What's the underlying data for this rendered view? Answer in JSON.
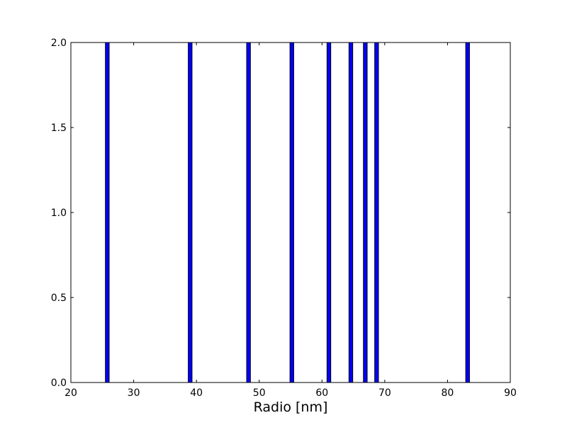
{
  "chart_data": {
    "type": "bar",
    "title": "",
    "xlabel": "Radio [nm]",
    "ylabel": "",
    "xlim": [
      20,
      90
    ],
    "ylim": [
      0,
      2.0
    ],
    "xticks": [
      20,
      30,
      40,
      50,
      60,
      70,
      80,
      90
    ],
    "xtick_labels": [
      "20",
      "30",
      "40",
      "50",
      "60",
      "70",
      "80",
      "90"
    ],
    "yticks": [
      0,
      0.5,
      1.0,
      1.5,
      2.0
    ],
    "ytick_labels": [
      "0.0",
      "0.5",
      "1.0",
      "1.5",
      "2.0"
    ],
    "grid": false,
    "bar_width": 0.6,
    "bars": [
      {
        "x": 25.8,
        "value": 2.0
      },
      {
        "x": 39.0,
        "value": 2.0
      },
      {
        "x": 48.3,
        "value": 2.0
      },
      {
        "x": 55.2,
        "value": 2.0
      },
      {
        "x": 61.1,
        "value": 2.0
      },
      {
        "x": 64.6,
        "value": 2.0
      },
      {
        "x": 66.9,
        "value": 2.0
      },
      {
        "x": 68.7,
        "value": 2.0
      },
      {
        "x": 83.2,
        "value": 2.0
      }
    ],
    "bar_color": "#0000ff",
    "edge_color": "#000000"
  }
}
